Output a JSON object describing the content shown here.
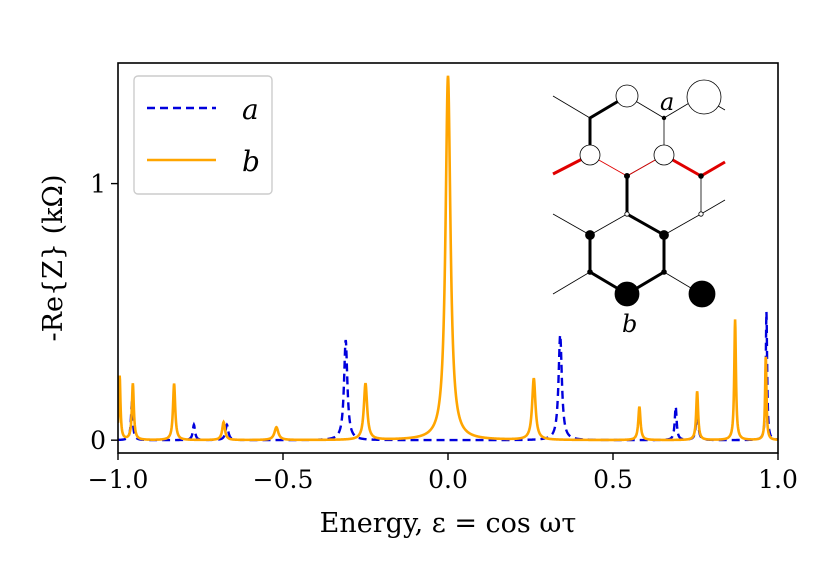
{
  "chart_data": {
    "type": "line",
    "xlabel": "Energy, ε = cos ωτ",
    "ylabel": "-Re{Z} (kΩ)",
    "xlim": [
      -1.0,
      1.0
    ],
    "ylim": [
      -0.05,
      1.47
    ],
    "x_ticks": [
      -1.0,
      -0.5,
      0.0,
      0.5,
      1.0
    ],
    "x_tick_labels": [
      "−1.0",
      "−0.5",
      "0.0",
      "0.5",
      "1.0"
    ],
    "y_ticks": [
      0,
      1
    ],
    "y_tick_labels": [
      "0",
      "1"
    ],
    "grid": false,
    "legend_position": "top-left",
    "series": [
      {
        "name": "a",
        "color": "#0000dd",
        "style": "dashed",
        "baseline": 0.0,
        "peaks": [
          {
            "x": -0.958,
            "height": 0.14,
            "width": 0.0035
          },
          {
            "x": -0.77,
            "height": 0.06,
            "width": 0.004
          },
          {
            "x": -0.67,
            "height": 0.06,
            "width": 0.005
          },
          {
            "x": -0.31,
            "height": 0.39,
            "width": 0.006
          },
          {
            "x": 0.34,
            "height": 0.41,
            "width": 0.006
          },
          {
            "x": 0.69,
            "height": 0.13,
            "width": 0.0035
          },
          {
            "x": 0.755,
            "height": 0.14,
            "width": 0.0035
          },
          {
            "x": 0.965,
            "height": 0.5,
            "width": 0.0025
          }
        ]
      },
      {
        "name": "b",
        "color": "#ffa500",
        "style": "solid",
        "baseline": 0.0,
        "peaks": [
          {
            "x": -0.995,
            "height": 0.25,
            "width": 0.003
          },
          {
            "x": -0.955,
            "height": 0.22,
            "width": 0.0035
          },
          {
            "x": -0.83,
            "height": 0.22,
            "width": 0.004
          },
          {
            "x": -0.68,
            "height": 0.07,
            "width": 0.005
          },
          {
            "x": -0.52,
            "height": 0.05,
            "width": 0.007
          },
          {
            "x": -0.25,
            "height": 0.22,
            "width": 0.006
          },
          {
            "x": 0.0,
            "height": 1.42,
            "width": 0.009
          },
          {
            "x": 0.26,
            "height": 0.24,
            "width": 0.006
          },
          {
            "x": 0.58,
            "height": 0.13,
            "width": 0.004
          },
          {
            "x": 0.755,
            "height": 0.19,
            "width": 0.0035
          },
          {
            "x": 0.87,
            "height": 0.47,
            "width": 0.003
          },
          {
            "x": 0.963,
            "height": 0.33,
            "width": 0.0025
          }
        ]
      }
    ],
    "inset": {
      "label_a": "a",
      "label_b": "b"
    }
  }
}
